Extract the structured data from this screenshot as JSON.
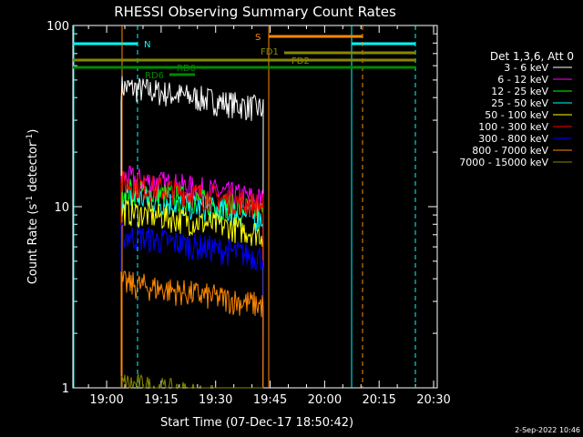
{
  "chart_data": {
    "type": "line",
    "title": "RHESSI Observing Summary Count Rates",
    "xlabel": "Start Time (07-Dec-17 18:50:42)",
    "ylabel_main": "Count Rate (s",
    "ylabel_sup": "-1",
    "ylabel_mid": " detector",
    "ylabel_sup2": "-1",
    "ylabel_end": ")",
    "yscale": "log",
    "ylim": [
      1,
      100
    ],
    "x_ticks": [
      "19:00",
      "19:15",
      "19:30",
      "19:45",
      "20:00",
      "20:15",
      "20:30"
    ],
    "y_ticks": [
      "1",
      "10",
      "100"
    ],
    "legend_header": "Det 1,3,6, Att 0",
    "legend_placement": "right",
    "footer_date": "2-Sep-2022 10:46",
    "series": [
      {
        "name": "3 - 6 keV",
        "color": "#ffffff",
        "level": 46,
        "start": "19:04",
        "end": "19:43"
      },
      {
        "name": "6 - 12 keV",
        "color": "#ff00ff",
        "level": 14.5,
        "start": "19:04",
        "end": "19:43"
      },
      {
        "name": "12 - 25 keV",
        "color": "#00ff00",
        "level": 12.5,
        "start": "19:04",
        "end": "19:43"
      },
      {
        "name": "25 - 50 keV",
        "color": "#00ffff",
        "level": 11.5,
        "start": "19:04",
        "end": "19:43"
      },
      {
        "name": "50 - 100 keV",
        "color": "#ffff00",
        "level": 9.5,
        "start": "19:04",
        "end": "19:43"
      },
      {
        "name": "100 - 300 keV",
        "color": "#ff0000",
        "level": 13.5,
        "start": "19:04",
        "end": "19:43"
      },
      {
        "name": "300 - 800 keV",
        "color": "#0000ff",
        "level": 7.0,
        "start": "19:04",
        "end": "19:43"
      },
      {
        "name": "800 - 7000 keV",
        "color": "#ff8800",
        "level": 3.8,
        "start": "19:04",
        "end": "19:43"
      },
      {
        "name": "7000 - 15000 keV",
        "color": "#888800",
        "level": 1.05,
        "start": "19:04",
        "end": "19:43"
      }
    ],
    "flags": [
      {
        "label": "N",
        "color": "#00ffff"
      },
      {
        "label": "S",
        "color": "#ff8800"
      },
      {
        "label": "FD1",
        "color": "#888800"
      },
      {
        "label": "FD2",
        "color": "#888800"
      },
      {
        "label": "RD0",
        "color": "#008800"
      },
      {
        "label": "RD6",
        "color": "#008800"
      }
    ],
    "grid": false
  }
}
